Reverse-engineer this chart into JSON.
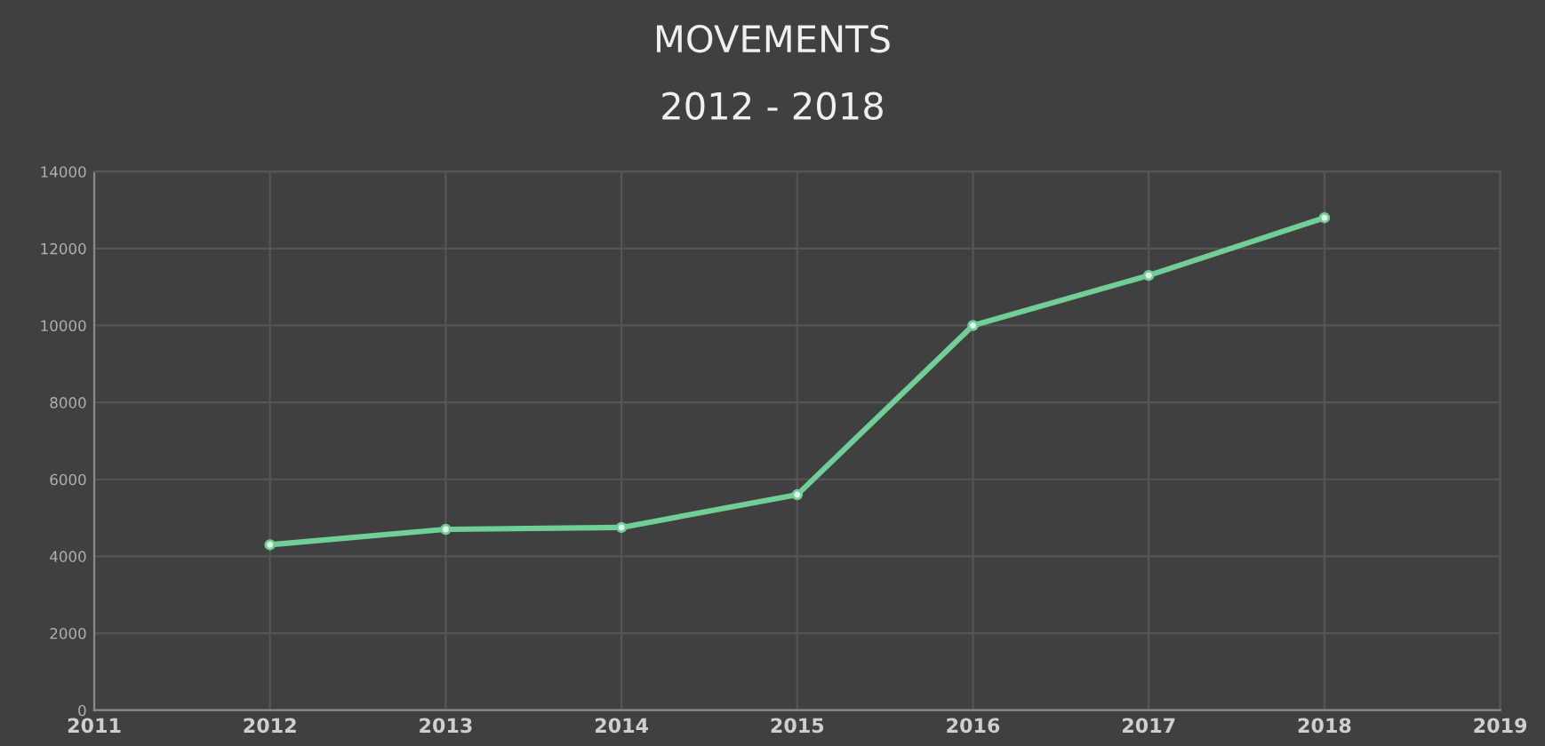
{
  "chart_data": {
    "type": "line",
    "title": "MOVEMENTS",
    "subtitle": "2012 - 2018",
    "x": [
      2012,
      2013,
      2014,
      2015,
      2016,
      2017,
      2018
    ],
    "series": [
      {
        "color": "#6fcf97",
        "values": [
          4300,
          4700,
          4750,
          5600,
          10000,
          11300,
          12800
        ]
      }
    ],
    "xlim": [
      2011,
      2019
    ],
    "xticks": [
      2011,
      2012,
      2013,
      2014,
      2015,
      2016,
      2017,
      2018,
      2019
    ],
    "ylim": [
      0,
      14000
    ],
    "yticks": [
      0,
      2000,
      4000,
      6000,
      8000,
      10000,
      12000,
      14000
    ],
    "grid": true,
    "marker": "circle",
    "line_style": "solid"
  }
}
